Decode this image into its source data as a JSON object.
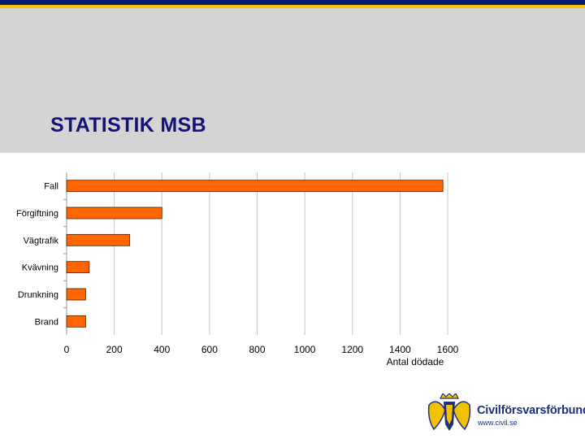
{
  "slide": {
    "title": "STATISTIK MSB"
  },
  "logo": {
    "name": "Civilförsvarsförbundet",
    "url": "www.civil.se"
  },
  "colors": {
    "bar": "#ff6600",
    "bar_stroke": "#4a2200",
    "title": "#13137a",
    "band": "#d4d4d4",
    "top_blue": "#0a1a6e",
    "top_gold": "#f2c200"
  },
  "chart_data": {
    "type": "bar",
    "orientation": "horizontal",
    "categories": [
      "Fall",
      "Förgiftning",
      "Vägtrafik",
      "Kvävning",
      "Drunkning",
      "Brand"
    ],
    "values": [
      1580,
      400,
      265,
      95,
      80,
      80
    ],
    "xlabel": "Antal dödade",
    "xlim": [
      0,
      1600
    ],
    "xticks": [
      0,
      200,
      400,
      600,
      800,
      1000,
      1200,
      1400,
      1600
    ],
    "grid": true
  }
}
